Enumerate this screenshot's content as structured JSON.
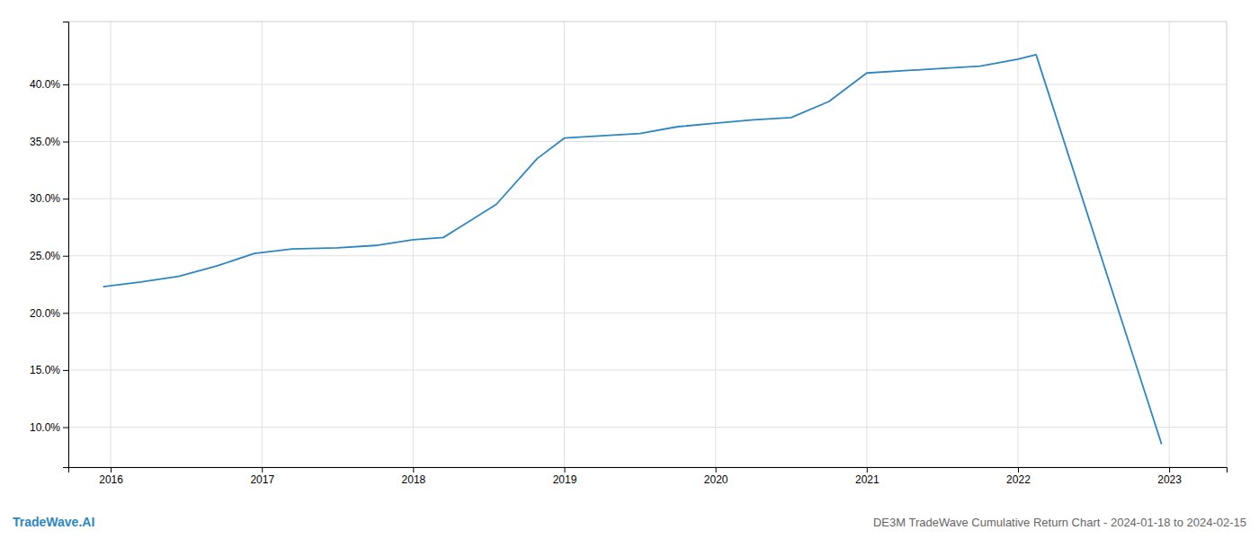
{
  "chart_data": {
    "type": "line",
    "title": "DE3M TradeWave Cumulative Return Chart - 2024-01-18 to 2024-02-15",
    "annotations": [
      "TradeWave.AI"
    ],
    "x": [
      2015.95,
      2016.2,
      2016.45,
      2016.7,
      2016.95,
      2017.2,
      2017.5,
      2017.75,
      2018.0,
      2018.2,
      2018.55,
      2018.82,
      2019.0,
      2019.25,
      2019.5,
      2019.75,
      2020.0,
      2020.25,
      2020.5,
      2020.75,
      2021.0,
      2021.25,
      2021.5,
      2021.75,
      2022.0,
      2022.12,
      2022.95
    ],
    "values": [
      22.3,
      22.7,
      23.2,
      24.1,
      25.2,
      25.6,
      25.7,
      25.9,
      26.4,
      26.6,
      29.5,
      33.5,
      35.3,
      35.5,
      35.7,
      36.3,
      36.6,
      36.9,
      37.1,
      38.5,
      41.0,
      41.2,
      41.4,
      41.6,
      42.2,
      42.6,
      8.5
    ],
    "color": "#2e86c1",
    "xlim": [
      2015.72,
      2023.38
    ],
    "ylim": [
      6.5,
      45.5
    ],
    "xticks": [
      2016,
      2017,
      2018,
      2019,
      2020,
      2021,
      2022,
      2023
    ],
    "yticks": [
      {
        "value": 10.0,
        "label": "10.0%"
      },
      {
        "value": 15.0,
        "label": "15.0%"
      },
      {
        "value": 20.0,
        "label": "20.0%"
      },
      {
        "value": 25.0,
        "label": "25.0%"
      },
      {
        "value": 30.0,
        "label": "30.0%"
      },
      {
        "value": 35.0,
        "label": "35.0%"
      },
      {
        "value": 40.0,
        "label": "40.0%"
      }
    ],
    "grid": true
  }
}
